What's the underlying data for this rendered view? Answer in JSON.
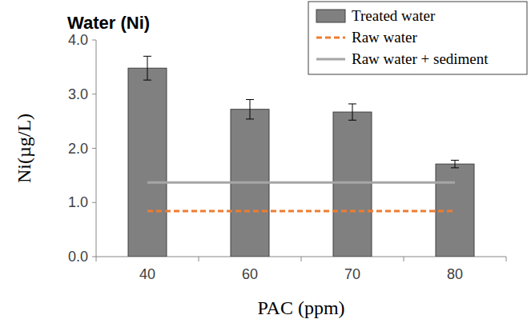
{
  "chart_data": {
    "type": "bar",
    "title": "Water (Ni)",
    "x_label": "PAC (ppm)",
    "y_label": "Ni(µg/L)",
    "categories": [
      "40",
      "60",
      "70",
      "80"
    ],
    "series": [
      {
        "name": "Treated water",
        "type": "bar",
        "color": "#808080",
        "values": [
          3.48,
          2.72,
          2.67,
          1.71
        ],
        "errors": [
          0.22,
          0.18,
          0.15,
          0.07
        ]
      },
      {
        "name": "Raw water",
        "type": "line",
        "color": "#ed7d31",
        "line_style": "dashed",
        "values": [
          0.84,
          0.84,
          0.84,
          0.84
        ]
      },
      {
        "name": "Raw water + sediment",
        "type": "line",
        "color": "#a6a6a6",
        "line_style": "solid",
        "values": [
          1.37,
          1.37,
          1.37,
          1.37
        ]
      }
    ],
    "ylim": [
      0,
      4
    ],
    "yticks": [
      {
        "value": 0,
        "label": "0.0"
      },
      {
        "value": 1,
        "label": "1.0"
      },
      {
        "value": 2,
        "label": "2.0"
      },
      {
        "value": 3,
        "label": "3.0"
      },
      {
        "value": 4,
        "label": "4.0"
      }
    ],
    "grid": false,
    "legend": "top-right"
  }
}
